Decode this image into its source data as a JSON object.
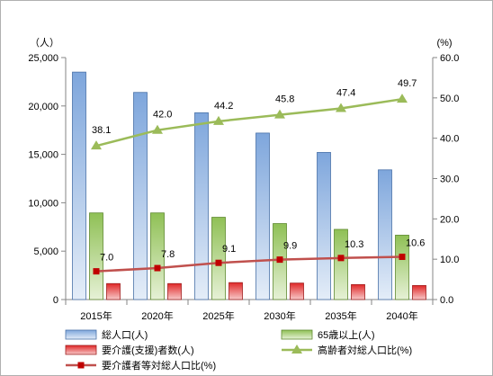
{
  "chart_data": {
    "type": "bar",
    "categories": [
      "2015年",
      "2020年",
      "2025年",
      "2030年",
      "2035年",
      "2040年"
    ],
    "y_left_unit": "（人）",
    "y_right_unit": "(%)",
    "y_left_ticks": [
      "0",
      "5,000",
      "10,000",
      "15,000",
      "20,000",
      "25,000"
    ],
    "y_right_ticks": [
      "0.0",
      "10.0",
      "20.0",
      "30.0",
      "40.0",
      "50.0",
      "60.0"
    ],
    "ylim_left": [
      0,
      25000
    ],
    "ylim_right": [
      0,
      60
    ],
    "series": [
      {
        "name": "総人口(人)",
        "type": "bar",
        "axis": "left",
        "color": "#7ea6dc",
        "values": [
          23500,
          21400,
          19300,
          17200,
          15200,
          13400
        ]
      },
      {
        "name": "65歳以上(人)",
        "type": "bar",
        "axis": "left",
        "color": "#92c05a",
        "values": [
          8950,
          8950,
          8500,
          7850,
          7250,
          6650
        ]
      },
      {
        "name": "要介護(支援)者数(人)",
        "type": "bar",
        "axis": "left",
        "color": "#e03030",
        "values": [
          1650,
          1650,
          1750,
          1700,
          1550,
          1450
        ]
      },
      {
        "name": "高齢者対総人口比(%)",
        "type": "line",
        "axis": "right",
        "color": "#9bbb59",
        "values": [
          38.1,
          42.0,
          44.2,
          45.8,
          47.4,
          49.7
        ],
        "labels": [
          "38.1",
          "42.0",
          "44.2",
          "45.8",
          "47.4",
          "49.7"
        ]
      },
      {
        "name": "要介護者等対総人口比(%)",
        "type": "line",
        "axis": "right",
        "color": "#c0504d",
        "values": [
          7.0,
          7.8,
          9.1,
          9.9,
          10.3,
          10.6
        ],
        "labels": [
          "7.0",
          "7.8",
          "9.1",
          "9.9",
          "10.3",
          "10.6"
        ]
      }
    ],
    "grid": false,
    "legend_position": "bottom"
  }
}
